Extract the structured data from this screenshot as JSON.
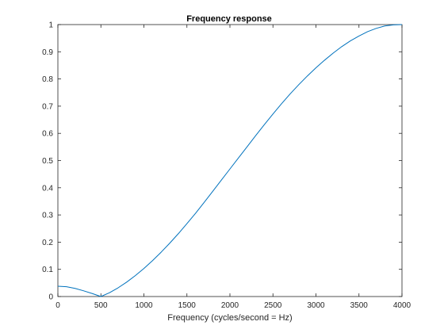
{
  "chart_data": {
    "type": "line",
    "title": "Frequency response",
    "xlabel": "Frequency (cycles/second = Hz)",
    "ylabel": "",
    "xlim": [
      0,
      4000
    ],
    "ylim": [
      0,
      1
    ],
    "x_ticks": [
      0,
      500,
      1000,
      1500,
      2000,
      2500,
      3000,
      3500,
      4000
    ],
    "x_tick_labels": [
      "0",
      "500",
      "1000",
      "1500",
      "2000",
      "2500",
      "3000",
      "3500",
      "4000"
    ],
    "y_ticks": [
      0,
      0.1,
      0.2,
      0.3,
      0.4,
      0.5,
      0.6,
      0.7,
      0.8,
      0.9,
      1
    ],
    "y_tick_labels": [
      "0",
      "0.1",
      "0.2",
      "0.3",
      "0.4",
      "0.5",
      "0.6",
      "0.7",
      "0.8",
      "0.9",
      "1"
    ],
    "grid": false,
    "box": true,
    "series": [
      {
        "color": "#0072BD",
        "x": [
          0,
          100,
          200,
          300,
          400,
          500,
          600,
          700,
          800,
          900,
          1000,
          1100,
          1200,
          1300,
          1400,
          1500,
          1600,
          1700,
          1800,
          1900,
          2000,
          2100,
          2200,
          2300,
          2400,
          2500,
          2600,
          2700,
          2800,
          2900,
          3000,
          3100,
          3200,
          3300,
          3400,
          3500,
          3600,
          3700,
          3800,
          3900,
          4000
        ],
        "y": [
          0.038,
          0.036,
          0.03,
          0.021,
          0.011,
          0.0,
          0.014,
          0.032,
          0.053,
          0.077,
          0.103,
          0.132,
          0.163,
          0.196,
          0.231,
          0.268,
          0.306,
          0.346,
          0.387,
          0.428,
          0.469,
          0.51,
          0.551,
          0.592,
          0.632,
          0.671,
          0.709,
          0.745,
          0.779,
          0.811,
          0.841,
          0.869,
          0.895,
          0.919,
          0.94,
          0.958,
          0.974,
          0.986,
          0.995,
          0.999,
          1.0
        ]
      }
    ]
  }
}
